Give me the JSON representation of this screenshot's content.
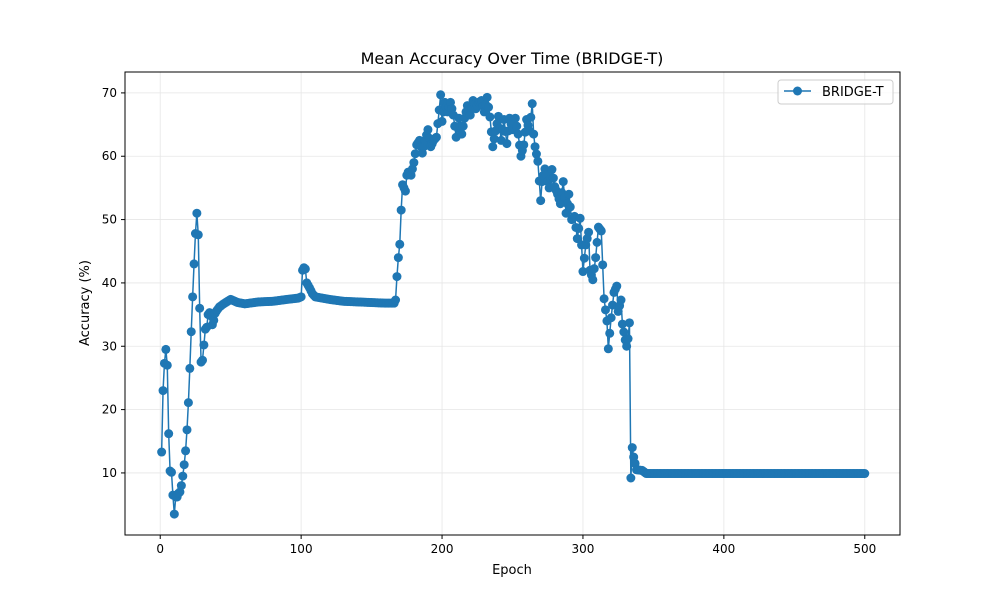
{
  "chart_data": {
    "type": "line",
    "title": "Mean Accuracy Over Time (BRIDGE-T)",
    "xlabel": "Epoch",
    "ylabel": "Accuracy (%)",
    "xlim": [
      -25,
      525
    ],
    "ylim": [
      0.2,
      73.3
    ],
    "xticks": [
      0,
      100,
      200,
      300,
      400,
      500
    ],
    "yticks": [
      10,
      20,
      30,
      40,
      50,
      60,
      70
    ],
    "grid": true,
    "legend": "top-right",
    "colors": {
      "series": "#1f77b4",
      "grid": "#e6e6e6",
      "axis": "#000000"
    },
    "series_name": "BRIDGE-T",
    "keyframes": [
      [
        1,
        13.3
      ],
      [
        2,
        23.0
      ],
      [
        3,
        27.3
      ],
      [
        4,
        29.5
      ],
      [
        5,
        27.0
      ],
      [
        6,
        16.2
      ],
      [
        7,
        10.3
      ],
      [
        8,
        10.1
      ],
      [
        9,
        6.5
      ],
      [
        10,
        3.5
      ],
      [
        11,
        6.2
      ],
      [
        12,
        6.2
      ],
      [
        13,
        6.8
      ],
      [
        14,
        7.0
      ],
      [
        15,
        8.0
      ],
      [
        16,
        9.5
      ],
      [
        17,
        11.3
      ],
      [
        18,
        13.5
      ],
      [
        19,
        16.8
      ],
      [
        20,
        21.1
      ],
      [
        21,
        26.5
      ],
      [
        22,
        32.3
      ],
      [
        23,
        37.8
      ],
      [
        24,
        43.0
      ],
      [
        25,
        47.8
      ],
      [
        26,
        51.0
      ],
      [
        27,
        47.6
      ],
      [
        28,
        36.0
      ],
      [
        29,
        27.5
      ],
      [
        30,
        27.8
      ],
      [
        31,
        30.2
      ],
      [
        32,
        32.7
      ],
      [
        33,
        33.0
      ],
      [
        34,
        35.0
      ],
      [
        35,
        35.3
      ],
      [
        36,
        34.8
      ],
      [
        37,
        33.4
      ],
      [
        38,
        34.1
      ],
      [
        39,
        35.2
      ],
      [
        40,
        35.6
      ],
      [
        42,
        36.2
      ],
      [
        45,
        36.7
      ],
      [
        50,
        37.4
      ],
      [
        55,
        36.9
      ],
      [
        60,
        36.7
      ],
      [
        70,
        37.0
      ],
      [
        80,
        37.1
      ],
      [
        90,
        37.4
      ],
      [
        98,
        37.6
      ],
      [
        100,
        37.8
      ],
      [
        101,
        42.0
      ],
      [
        102,
        42.4
      ],
      [
        103,
        42.2
      ],
      [
        104,
        40.0
      ],
      [
        106,
        39.2
      ],
      [
        108,
        38.3
      ],
      [
        110,
        37.8
      ],
      [
        115,
        37.6
      ],
      [
        120,
        37.4
      ],
      [
        130,
        37.1
      ],
      [
        140,
        37.0
      ],
      [
        150,
        36.9
      ],
      [
        160,
        36.8
      ],
      [
        166,
        36.8
      ],
      [
        167,
        37.3
      ],
      [
        168,
        41.0
      ],
      [
        169,
        44.0
      ],
      [
        170,
        46.1
      ],
      [
        171,
        51.5
      ],
      [
        172,
        55.5
      ],
      [
        173,
        55.0
      ],
      [
        174,
        54.5
      ],
      [
        175,
        57.0
      ],
      [
        176,
        57.5
      ],
      [
        178,
        57.0
      ],
      [
        180,
        59.0
      ],
      [
        182,
        61.8
      ],
      [
        184,
        62.5
      ],
      [
        186,
        60.5
      ],
      [
        188,
        62.5
      ],
      [
        190,
        64.2
      ],
      [
        192,
        61.5
      ],
      [
        194,
        62.5
      ],
      [
        196,
        63.0
      ],
      [
        198,
        67.3
      ],
      [
        199,
        69.7
      ],
      [
        200,
        65.5
      ],
      [
        202,
        68.5
      ],
      [
        204,
        67.0
      ],
      [
        206,
        68.5
      ],
      [
        208,
        66.5
      ],
      [
        210,
        63.0
      ],
      [
        212,
        66.0
      ],
      [
        214,
        63.5
      ],
      [
        216,
        66.0
      ],
      [
        218,
        68.0
      ],
      [
        220,
        66.5
      ],
      [
        222,
        68.8
      ],
      [
        224,
        67.5
      ],
      [
        226,
        68.5
      ],
      [
        228,
        68.8
      ],
      [
        230,
        67.0
      ],
      [
        232,
        69.3
      ],
      [
        234,
        66.2
      ],
      [
        236,
        61.5
      ],
      [
        238,
        64.0
      ],
      [
        240,
        66.3
      ],
      [
        242,
        62.5
      ],
      [
        244,
        65.8
      ],
      [
        246,
        62.0
      ],
      [
        248,
        66.0
      ],
      [
        250,
        64.2
      ],
      [
        252,
        66.0
      ],
      [
        254,
        63.5
      ],
      [
        256,
        60.0
      ],
      [
        258,
        61.8
      ],
      [
        260,
        65.8
      ],
      [
        262,
        64.0
      ],
      [
        264,
        68.3
      ],
      [
        265,
        63.5
      ],
      [
        266,
        61.5
      ],
      [
        268,
        59.2
      ],
      [
        270,
        53.0
      ],
      [
        271,
        56.0
      ],
      [
        273,
        58.0
      ],
      [
        276,
        55.0
      ],
      [
        278,
        57.9
      ],
      [
        280,
        55.2
      ],
      [
        282,
        54.0
      ],
      [
        284,
        52.5
      ],
      [
        286,
        56.0
      ],
      [
        288,
        51.0
      ],
      [
        290,
        54.0
      ],
      [
        292,
        50.0
      ],
      [
        294,
        50.5
      ],
      [
        296,
        47.0
      ],
      [
        298,
        50.2
      ],
      [
        300,
        41.8
      ],
      [
        302,
        46.0
      ],
      [
        304,
        48.0
      ],
      [
        305,
        42.0
      ],
      [
        307,
        40.5
      ],
      [
        309,
        44.0
      ],
      [
        311,
        48.8
      ],
      [
        313,
        48.2
      ],
      [
        315,
        37.5
      ],
      [
        317,
        34.0
      ],
      [
        318,
        29.6
      ],
      [
        320,
        34.5
      ],
      [
        322,
        38.5
      ],
      [
        324,
        39.5
      ],
      [
        325,
        35.5
      ],
      [
        327,
        37.3
      ],
      [
        328,
        33.5
      ],
      [
        330,
        31.0
      ],
      [
        331,
        30.0
      ],
      [
        332,
        31.2
      ],
      [
        333,
        33.7
      ],
      [
        334,
        9.2
      ],
      [
        335,
        14.0
      ],
      [
        336,
        12.5
      ],
      [
        338,
        10.5
      ],
      [
        342,
        10.4
      ],
      [
        345,
        9.9
      ],
      [
        500,
        9.9
      ]
    ]
  }
}
